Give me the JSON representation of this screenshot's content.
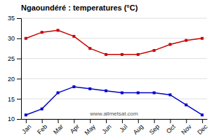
{
  "chart_data": {
    "type": "line",
    "title": "Ngaoundéré : temperatures (°C)",
    "annotations": [
      "www.allmetsat.com"
    ],
    "categories": [
      "Jan",
      "Feb",
      "Mar",
      "Apr",
      "May",
      "Jun",
      "Jul",
      "Aug",
      "Sep",
      "Oct",
      "Nov",
      "Dec"
    ],
    "series": [
      {
        "color": "#cc0000",
        "marker": "square",
        "line_style": "solid",
        "values": [
          30.0,
          31.5,
          32.0,
          30.5,
          27.5,
          26.0,
          26.0,
          26.0,
          27.0,
          28.5,
          29.5,
          30.0
        ]
      },
      {
        "color": "#0000cc",
        "marker": "square",
        "line_style": "solid",
        "values": [
          11.0,
          12.5,
          16.5,
          18.0,
          17.5,
          17.0,
          16.5,
          16.5,
          16.5,
          16.0,
          13.5,
          11.0
        ]
      }
    ],
    "ylim": [
      10,
      35
    ],
    "yticks": [
      10,
      15,
      20,
      25,
      30,
      35
    ],
    "grid": true
  }
}
